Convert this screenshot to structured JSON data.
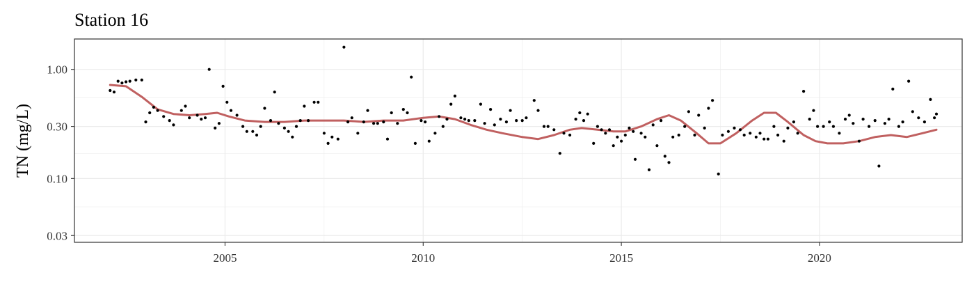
{
  "chart_data": {
    "type": "scatter",
    "title": "Station 16",
    "xlabel": "",
    "ylabel": "TN (mg/L)",
    "y_scale": "log10",
    "xlim": [
      2001.2,
      2023.6
    ],
    "ylim": [
      0.026,
      1.9
    ],
    "x_ticks": [
      {
        "value": 2005,
        "label": "2005"
      },
      {
        "value": 2010,
        "label": "2010"
      },
      {
        "value": 2015,
        "label": "2015"
      },
      {
        "value": 2020,
        "label": "2020"
      }
    ],
    "y_ticks": [
      {
        "value": 0.03,
        "label": "0.03"
      },
      {
        "value": 0.1,
        "label": "0.10"
      },
      {
        "value": 0.3,
        "label": "0.30"
      },
      {
        "value": 1.0,
        "label": "1.00"
      }
    ],
    "y_minor_ticks": [
      0.055,
      0.17,
      0.55
    ],
    "grid": true,
    "legend": "none",
    "colors": {
      "points": "#000000",
      "smooth": "#c06060",
      "grid": "#ebebeb",
      "panel_border": "#333333"
    },
    "series": [
      {
        "kind": "points",
        "points": [
          [
            2002.1,
            0.64
          ],
          [
            2002.2,
            0.62
          ],
          [
            2002.3,
            0.78
          ],
          [
            2002.4,
            0.75
          ],
          [
            2002.5,
            0.77
          ],
          [
            2002.6,
            0.78
          ],
          [
            2002.75,
            0.8
          ],
          [
            2002.9,
            0.8
          ],
          [
            2003.0,
            0.33
          ],
          [
            2003.1,
            0.4
          ],
          [
            2003.2,
            0.45
          ],
          [
            2003.3,
            0.42
          ],
          [
            2003.45,
            0.37
          ],
          [
            2003.6,
            0.34
          ],
          [
            2003.7,
            0.31
          ],
          [
            2003.9,
            0.42
          ],
          [
            2004.0,
            0.46
          ],
          [
            2004.1,
            0.36
          ],
          [
            2004.3,
            0.38
          ],
          [
            2004.4,
            0.35
          ],
          [
            2004.5,
            0.36
          ],
          [
            2004.6,
            1.0
          ],
          [
            2004.75,
            0.29
          ],
          [
            2004.85,
            0.32
          ],
          [
            2004.95,
            0.7
          ],
          [
            2005.05,
            0.5
          ],
          [
            2005.15,
            0.42
          ],
          [
            2005.3,
            0.38
          ],
          [
            2005.45,
            0.3
          ],
          [
            2005.55,
            0.27
          ],
          [
            2005.7,
            0.27
          ],
          [
            2005.8,
            0.25
          ],
          [
            2005.9,
            0.3
          ],
          [
            2006.0,
            0.44
          ],
          [
            2006.15,
            0.34
          ],
          [
            2006.25,
            0.62
          ],
          [
            2006.35,
            0.32
          ],
          [
            2006.5,
            0.29
          ],
          [
            2006.6,
            0.27
          ],
          [
            2006.7,
            0.24
          ],
          [
            2006.8,
            0.3
          ],
          [
            2006.9,
            0.34
          ],
          [
            2007.0,
            0.46
          ],
          [
            2007.1,
            0.34
          ],
          [
            2007.25,
            0.5
          ],
          [
            2007.35,
            0.5
          ],
          [
            2007.5,
            0.26
          ],
          [
            2007.6,
            0.21
          ],
          [
            2007.7,
            0.24
          ],
          [
            2007.85,
            0.23
          ],
          [
            2008.0,
            1.6
          ],
          [
            2008.1,
            0.33
          ],
          [
            2008.2,
            0.36
          ],
          [
            2008.35,
            0.26
          ],
          [
            2008.5,
            0.33
          ],
          [
            2008.6,
            0.42
          ],
          [
            2008.75,
            0.32
          ],
          [
            2008.85,
            0.32
          ],
          [
            2009.0,
            0.33
          ],
          [
            2009.1,
            0.23
          ],
          [
            2009.2,
            0.4
          ],
          [
            2009.35,
            0.32
          ],
          [
            2009.5,
            0.43
          ],
          [
            2009.6,
            0.4
          ],
          [
            2009.7,
            0.85
          ],
          [
            2009.8,
            0.21
          ],
          [
            2009.95,
            0.34
          ],
          [
            2010.05,
            0.33
          ],
          [
            2010.15,
            0.22
          ],
          [
            2010.3,
            0.26
          ],
          [
            2010.4,
            0.37
          ],
          [
            2010.5,
            0.3
          ],
          [
            2010.6,
            0.35
          ],
          [
            2010.7,
            0.48
          ],
          [
            2010.8,
            0.57
          ],
          [
            2010.95,
            0.36
          ],
          [
            2011.05,
            0.35
          ],
          [
            2011.15,
            0.34
          ],
          [
            2011.3,
            0.34
          ],
          [
            2011.45,
            0.48
          ],
          [
            2011.55,
            0.32
          ],
          [
            2011.7,
            0.43
          ],
          [
            2011.8,
            0.31
          ],
          [
            2011.95,
            0.35
          ],
          [
            2012.1,
            0.33
          ],
          [
            2012.2,
            0.42
          ],
          [
            2012.35,
            0.34
          ],
          [
            2012.5,
            0.34
          ],
          [
            2012.6,
            0.36
          ],
          [
            2012.8,
            0.52
          ],
          [
            2012.9,
            0.42
          ],
          [
            2013.05,
            0.3
          ],
          [
            2013.15,
            0.3
          ],
          [
            2013.3,
            0.28
          ],
          [
            2013.45,
            0.17
          ],
          [
            2013.55,
            0.26
          ],
          [
            2013.7,
            0.25
          ],
          [
            2013.85,
            0.35
          ],
          [
            2013.95,
            0.4
          ],
          [
            2014.05,
            0.34
          ],
          [
            2014.15,
            0.39
          ],
          [
            2014.3,
            0.21
          ],
          [
            2014.4,
            0.3
          ],
          [
            2014.5,
            0.28
          ],
          [
            2014.6,
            0.26
          ],
          [
            2014.7,
            0.28
          ],
          [
            2014.8,
            0.2
          ],
          [
            2014.9,
            0.24
          ],
          [
            2015.0,
            0.22
          ],
          [
            2015.1,
            0.25
          ],
          [
            2015.2,
            0.29
          ],
          [
            2015.3,
            0.27
          ],
          [
            2015.35,
            0.15
          ],
          [
            2015.5,
            0.26
          ],
          [
            2015.6,
            0.24
          ],
          [
            2015.7,
            0.12
          ],
          [
            2015.8,
            0.31
          ],
          [
            2015.9,
            0.2
          ],
          [
            2016.0,
            0.34
          ],
          [
            2016.1,
            0.16
          ],
          [
            2016.2,
            0.14
          ],
          [
            2016.3,
            0.24
          ],
          [
            2016.45,
            0.25
          ],
          [
            2016.6,
            0.3
          ],
          [
            2016.7,
            0.41
          ],
          [
            2016.85,
            0.25
          ],
          [
            2016.95,
            0.38
          ],
          [
            2017.1,
            0.29
          ],
          [
            2017.2,
            0.44
          ],
          [
            2017.3,
            0.52
          ],
          [
            2017.45,
            0.11
          ],
          [
            2017.55,
            0.25
          ],
          [
            2017.7,
            0.27
          ],
          [
            2017.85,
            0.29
          ],
          [
            2018.0,
            0.28
          ],
          [
            2018.1,
            0.25
          ],
          [
            2018.25,
            0.26
          ],
          [
            2018.4,
            0.24
          ],
          [
            2018.5,
            0.26
          ],
          [
            2018.6,
            0.23
          ],
          [
            2018.7,
            0.23
          ],
          [
            2018.85,
            0.3
          ],
          [
            2018.95,
            0.25
          ],
          [
            2019.1,
            0.22
          ],
          [
            2019.2,
            0.29
          ],
          [
            2019.35,
            0.33
          ],
          [
            2019.45,
            0.26
          ],
          [
            2019.6,
            0.63
          ],
          [
            2019.75,
            0.35
          ],
          [
            2019.85,
            0.42
          ],
          [
            2019.95,
            0.3
          ],
          [
            2020.1,
            0.3
          ],
          [
            2020.25,
            0.33
          ],
          [
            2020.35,
            0.3
          ],
          [
            2020.5,
            0.26
          ],
          [
            2020.65,
            0.35
          ],
          [
            2020.75,
            0.38
          ],
          [
            2020.85,
            0.32
          ],
          [
            2021.0,
            0.22
          ],
          [
            2021.1,
            0.35
          ],
          [
            2021.25,
            0.3
          ],
          [
            2021.4,
            0.34
          ],
          [
            2021.5,
            0.13
          ],
          [
            2021.65,
            0.32
          ],
          [
            2021.75,
            0.35
          ],
          [
            2021.85,
            0.66
          ],
          [
            2022.0,
            0.3
          ],
          [
            2022.1,
            0.33
          ],
          [
            2022.25,
            0.78
          ],
          [
            2022.35,
            0.41
          ],
          [
            2022.5,
            0.36
          ],
          [
            2022.65,
            0.33
          ],
          [
            2022.8,
            0.53
          ],
          [
            2022.9,
            0.36
          ],
          [
            2022.95,
            0.39
          ]
        ]
      },
      {
        "kind": "smooth",
        "points": [
          [
            2002.1,
            0.72
          ],
          [
            2002.5,
            0.7
          ],
          [
            2002.9,
            0.56
          ],
          [
            2003.3,
            0.43
          ],
          [
            2003.7,
            0.39
          ],
          [
            2004.1,
            0.38
          ],
          [
            2004.5,
            0.39
          ],
          [
            2004.8,
            0.4
          ],
          [
            2005.1,
            0.37
          ],
          [
            2005.5,
            0.34
          ],
          [
            2006.0,
            0.33
          ],
          [
            2006.5,
            0.33
          ],
          [
            2007.0,
            0.34
          ],
          [
            2007.5,
            0.34
          ],
          [
            2008.0,
            0.34
          ],
          [
            2008.5,
            0.33
          ],
          [
            2009.0,
            0.34
          ],
          [
            2009.5,
            0.34
          ],
          [
            2010.0,
            0.36
          ],
          [
            2010.4,
            0.37
          ],
          [
            2010.8,
            0.35
          ],
          [
            2011.2,
            0.31
          ],
          [
            2011.6,
            0.28
          ],
          [
            2012.0,
            0.26
          ],
          [
            2012.5,
            0.24
          ],
          [
            2012.9,
            0.23
          ],
          [
            2013.3,
            0.25
          ],
          [
            2013.7,
            0.28
          ],
          [
            2014.0,
            0.29
          ],
          [
            2014.4,
            0.28
          ],
          [
            2014.8,
            0.27
          ],
          [
            2015.1,
            0.27
          ],
          [
            2015.5,
            0.3
          ],
          [
            2015.9,
            0.35
          ],
          [
            2016.2,
            0.38
          ],
          [
            2016.5,
            0.34
          ],
          [
            2016.9,
            0.26
          ],
          [
            2017.2,
            0.21
          ],
          [
            2017.5,
            0.21
          ],
          [
            2017.9,
            0.26
          ],
          [
            2018.3,
            0.34
          ],
          [
            2018.6,
            0.4
          ],
          [
            2018.9,
            0.4
          ],
          [
            2019.2,
            0.33
          ],
          [
            2019.6,
            0.25
          ],
          [
            2019.9,
            0.22
          ],
          [
            2020.2,
            0.21
          ],
          [
            2020.6,
            0.21
          ],
          [
            2021.0,
            0.22
          ],
          [
            2021.4,
            0.24
          ],
          [
            2021.8,
            0.25
          ],
          [
            2022.2,
            0.24
          ],
          [
            2022.6,
            0.26
          ],
          [
            2022.95,
            0.28
          ]
        ]
      }
    ]
  }
}
